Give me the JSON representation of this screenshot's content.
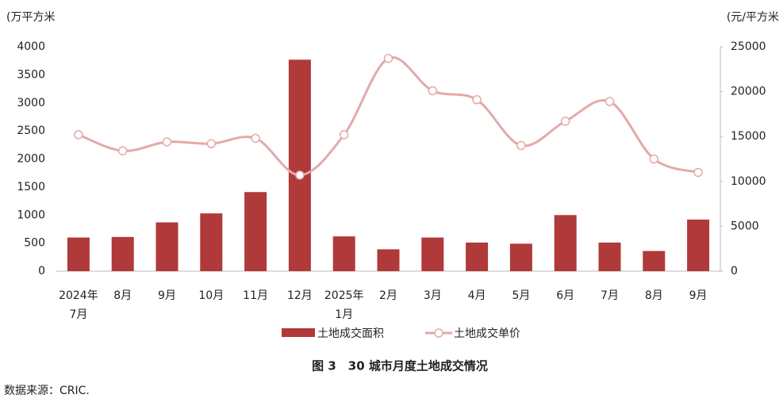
{
  "chart_data": {
    "type": "bar-line",
    "title": "图 3　30 城市月度土地成交情况",
    "source": "数据来源：CRIC.",
    "y_label": "(万平方米",
    "y2_label": "(元/平方米",
    "categories": [
      "2024年7月",
      "8月",
      "9月",
      "10月",
      "11月",
      "12月",
      "2025年1月",
      "2月",
      "3月",
      "4月",
      "5月",
      "6月",
      "7月",
      "8月",
      "9月"
    ],
    "series": [
      {
        "name": "土地成交面积",
        "type": "bar",
        "color": "#b0393a",
        "values": [
          600,
          610,
          870,
          1030,
          1410,
          3770,
          620,
          390,
          600,
          510,
          490,
          1000,
          510,
          360,
          920
        ]
      },
      {
        "name": "土地成交单价",
        "type": "line",
        "axis": "y2",
        "color": "#e4a9a9",
        "values": [
          15200,
          13400,
          14400,
          14200,
          14800,
          10700,
          15200,
          23700,
          20100,
          19100,
          14000,
          16700,
          18900,
          12500,
          11000
        ]
      }
    ],
    "ylim": [
      0,
      4000
    ],
    "yticks": [
      0,
      500,
      1000,
      1500,
      2000,
      2500,
      3000,
      3500,
      4000
    ],
    "y2lim": [
      0,
      25000
    ],
    "y2ticks": [
      0,
      5000,
      10000,
      15000,
      20000,
      25000
    ]
  }
}
